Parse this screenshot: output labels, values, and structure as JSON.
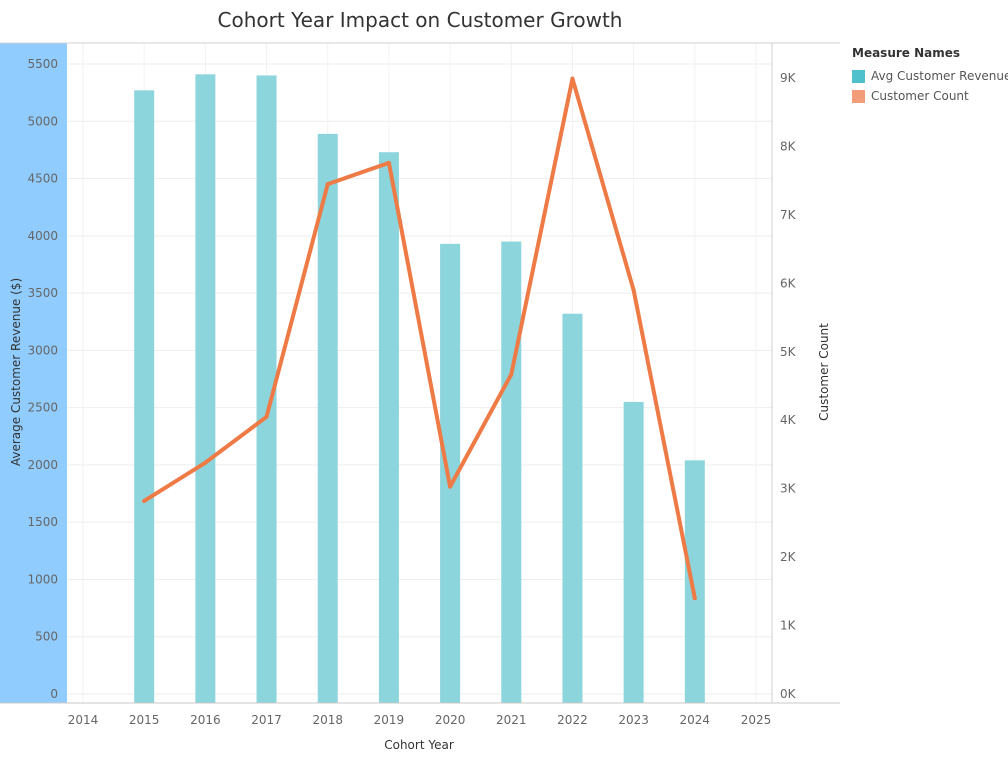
{
  "title": "Cohort Year Impact on Customer Growth",
  "legend": {
    "title": "Measure Names",
    "items": [
      {
        "label": "Avg Customer Revenue",
        "color": "#4FC1CC"
      },
      {
        "label": "Customer Count",
        "color": "#F29C7A"
      }
    ]
  },
  "chart_data": {
    "type": "bar",
    "title": "Cohort Year Impact on Customer Growth",
    "xlabel": "Cohort Year",
    "ylabel": "Average Customer Revenue ($)",
    "y2label": "Customer Count",
    "x_ticks": [
      "2014",
      "2015",
      "2016",
      "2017",
      "2018",
      "2019",
      "2020",
      "2021",
      "2022",
      "2023",
      "2024",
      "2025"
    ],
    "categories": [
      "2015",
      "2016",
      "2017",
      "2018",
      "2019",
      "2020",
      "2021",
      "2022",
      "2023",
      "2024"
    ],
    "series": [
      {
        "name": "Avg Customer Revenue",
        "type": "bar",
        "axis": "left",
        "color": "#8DD5DC",
        "values": [
          5270,
          5410,
          5400,
          4890,
          4730,
          3930,
          3950,
          3320,
          2550,
          2040
        ]
      },
      {
        "name": "Customer Count",
        "type": "line",
        "axis": "right",
        "color": "#EE7A45",
        "values": [
          2820,
          3380,
          4050,
          7450,
          7760,
          3030,
          4670,
          8990,
          5900,
          1400
        ]
      }
    ],
    "ylim": [
      0,
      5600
    ],
    "y_ticks": [
      0,
      500,
      1000,
      1500,
      2000,
      2500,
      3000,
      3500,
      4000,
      4500,
      5000,
      5500
    ],
    "y2lim": [
      0,
      9000
    ],
    "y2_ticks": [
      {
        "value": 0,
        "label": "0K"
      },
      {
        "value": 1000,
        "label": "1K"
      },
      {
        "value": 2000,
        "label": "2K"
      },
      {
        "value": 3000,
        "label": "3K"
      },
      {
        "value": 4000,
        "label": "4K"
      },
      {
        "value": 5000,
        "label": "5K"
      },
      {
        "value": 6000,
        "label": "6K"
      },
      {
        "value": 7000,
        "label": "7K"
      },
      {
        "value": 8000,
        "label": "8K"
      },
      {
        "value": 9000,
        "label": "9K"
      }
    ],
    "grid": true,
    "legend_position": "right"
  }
}
